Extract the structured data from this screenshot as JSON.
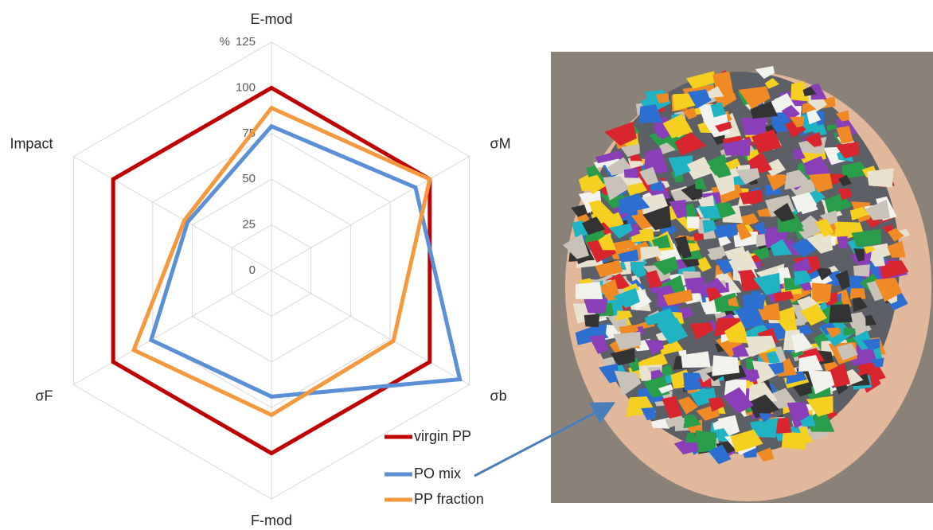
{
  "chart_data": {
    "type": "radar",
    "categories": [
      "E-mod",
      "σM",
      "σb",
      "F-mod",
      "σF",
      "Impact"
    ],
    "unit": "%",
    "ylim": [
      0,
      125
    ],
    "yticks": [
      0,
      25,
      50,
      75,
      100,
      125
    ],
    "grid": true,
    "legend": "bottom-right",
    "series": [
      {
        "name": "virgin PP",
        "color": "#c00000",
        "values": [
          100,
          100,
          100,
          100,
          100,
          100
        ]
      },
      {
        "name": "PO mix",
        "color": "#5b8fd6",
        "values": [
          79,
          91,
          119,
          69,
          76,
          53
        ]
      },
      {
        "name": "PP fraction",
        "color": "#f5993f",
        "values": [
          89,
          100,
          77,
          79,
          87,
          55
        ]
      }
    ]
  }
}
